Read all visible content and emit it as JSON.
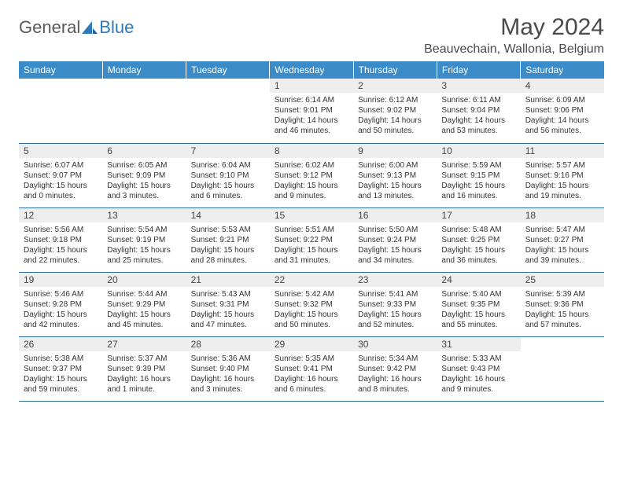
{
  "logo": {
    "text1": "General",
    "text2": "Blue"
  },
  "title": "May 2024",
  "location": "Beauvechain, Wallonia, Belgium",
  "colors": {
    "header_bg": "#3b8bc9",
    "header_text": "#ffffff",
    "daynum_bg": "#eeeeee",
    "row_border": "#2b6ea8",
    "logo_blue": "#2b7abf",
    "logo_gray": "#5a5a5a",
    "page_bg": "#ffffff",
    "body_text": "#333333"
  },
  "weekdays": [
    "Sunday",
    "Monday",
    "Tuesday",
    "Wednesday",
    "Thursday",
    "Friday",
    "Saturday"
  ],
  "weeks": [
    [
      {
        "empty": true
      },
      {
        "empty": true
      },
      {
        "empty": true
      },
      {
        "day": "1",
        "sunrise": "Sunrise: 6:14 AM",
        "sunset": "Sunset: 9:01 PM",
        "daylight": "Daylight: 14 hours and 46 minutes."
      },
      {
        "day": "2",
        "sunrise": "Sunrise: 6:12 AM",
        "sunset": "Sunset: 9:02 PM",
        "daylight": "Daylight: 14 hours and 50 minutes."
      },
      {
        "day": "3",
        "sunrise": "Sunrise: 6:11 AM",
        "sunset": "Sunset: 9:04 PM",
        "daylight": "Daylight: 14 hours and 53 minutes."
      },
      {
        "day": "4",
        "sunrise": "Sunrise: 6:09 AM",
        "sunset": "Sunset: 9:06 PM",
        "daylight": "Daylight: 14 hours and 56 minutes."
      }
    ],
    [
      {
        "day": "5",
        "sunrise": "Sunrise: 6:07 AM",
        "sunset": "Sunset: 9:07 PM",
        "daylight": "Daylight: 15 hours and 0 minutes."
      },
      {
        "day": "6",
        "sunrise": "Sunrise: 6:05 AM",
        "sunset": "Sunset: 9:09 PM",
        "daylight": "Daylight: 15 hours and 3 minutes."
      },
      {
        "day": "7",
        "sunrise": "Sunrise: 6:04 AM",
        "sunset": "Sunset: 9:10 PM",
        "daylight": "Daylight: 15 hours and 6 minutes."
      },
      {
        "day": "8",
        "sunrise": "Sunrise: 6:02 AM",
        "sunset": "Sunset: 9:12 PM",
        "daylight": "Daylight: 15 hours and 9 minutes."
      },
      {
        "day": "9",
        "sunrise": "Sunrise: 6:00 AM",
        "sunset": "Sunset: 9:13 PM",
        "daylight": "Daylight: 15 hours and 13 minutes."
      },
      {
        "day": "10",
        "sunrise": "Sunrise: 5:59 AM",
        "sunset": "Sunset: 9:15 PM",
        "daylight": "Daylight: 15 hours and 16 minutes."
      },
      {
        "day": "11",
        "sunrise": "Sunrise: 5:57 AM",
        "sunset": "Sunset: 9:16 PM",
        "daylight": "Daylight: 15 hours and 19 minutes."
      }
    ],
    [
      {
        "day": "12",
        "sunrise": "Sunrise: 5:56 AM",
        "sunset": "Sunset: 9:18 PM",
        "daylight": "Daylight: 15 hours and 22 minutes."
      },
      {
        "day": "13",
        "sunrise": "Sunrise: 5:54 AM",
        "sunset": "Sunset: 9:19 PM",
        "daylight": "Daylight: 15 hours and 25 minutes."
      },
      {
        "day": "14",
        "sunrise": "Sunrise: 5:53 AM",
        "sunset": "Sunset: 9:21 PM",
        "daylight": "Daylight: 15 hours and 28 minutes."
      },
      {
        "day": "15",
        "sunrise": "Sunrise: 5:51 AM",
        "sunset": "Sunset: 9:22 PM",
        "daylight": "Daylight: 15 hours and 31 minutes."
      },
      {
        "day": "16",
        "sunrise": "Sunrise: 5:50 AM",
        "sunset": "Sunset: 9:24 PM",
        "daylight": "Daylight: 15 hours and 34 minutes."
      },
      {
        "day": "17",
        "sunrise": "Sunrise: 5:48 AM",
        "sunset": "Sunset: 9:25 PM",
        "daylight": "Daylight: 15 hours and 36 minutes."
      },
      {
        "day": "18",
        "sunrise": "Sunrise: 5:47 AM",
        "sunset": "Sunset: 9:27 PM",
        "daylight": "Daylight: 15 hours and 39 minutes."
      }
    ],
    [
      {
        "day": "19",
        "sunrise": "Sunrise: 5:46 AM",
        "sunset": "Sunset: 9:28 PM",
        "daylight": "Daylight: 15 hours and 42 minutes."
      },
      {
        "day": "20",
        "sunrise": "Sunrise: 5:44 AM",
        "sunset": "Sunset: 9:29 PM",
        "daylight": "Daylight: 15 hours and 45 minutes."
      },
      {
        "day": "21",
        "sunrise": "Sunrise: 5:43 AM",
        "sunset": "Sunset: 9:31 PM",
        "daylight": "Daylight: 15 hours and 47 minutes."
      },
      {
        "day": "22",
        "sunrise": "Sunrise: 5:42 AM",
        "sunset": "Sunset: 9:32 PM",
        "daylight": "Daylight: 15 hours and 50 minutes."
      },
      {
        "day": "23",
        "sunrise": "Sunrise: 5:41 AM",
        "sunset": "Sunset: 9:33 PM",
        "daylight": "Daylight: 15 hours and 52 minutes."
      },
      {
        "day": "24",
        "sunrise": "Sunrise: 5:40 AM",
        "sunset": "Sunset: 9:35 PM",
        "daylight": "Daylight: 15 hours and 55 minutes."
      },
      {
        "day": "25",
        "sunrise": "Sunrise: 5:39 AM",
        "sunset": "Sunset: 9:36 PM",
        "daylight": "Daylight: 15 hours and 57 minutes."
      }
    ],
    [
      {
        "day": "26",
        "sunrise": "Sunrise: 5:38 AM",
        "sunset": "Sunset: 9:37 PM",
        "daylight": "Daylight: 15 hours and 59 minutes."
      },
      {
        "day": "27",
        "sunrise": "Sunrise: 5:37 AM",
        "sunset": "Sunset: 9:39 PM",
        "daylight": "Daylight: 16 hours and 1 minute."
      },
      {
        "day": "28",
        "sunrise": "Sunrise: 5:36 AM",
        "sunset": "Sunset: 9:40 PM",
        "daylight": "Daylight: 16 hours and 3 minutes."
      },
      {
        "day": "29",
        "sunrise": "Sunrise: 5:35 AM",
        "sunset": "Sunset: 9:41 PM",
        "daylight": "Daylight: 16 hours and 6 minutes."
      },
      {
        "day": "30",
        "sunrise": "Sunrise: 5:34 AM",
        "sunset": "Sunset: 9:42 PM",
        "daylight": "Daylight: 16 hours and 8 minutes."
      },
      {
        "day": "31",
        "sunrise": "Sunrise: 5:33 AM",
        "sunset": "Sunset: 9:43 PM",
        "daylight": "Daylight: 16 hours and 9 minutes."
      },
      {
        "empty": true
      }
    ]
  ]
}
